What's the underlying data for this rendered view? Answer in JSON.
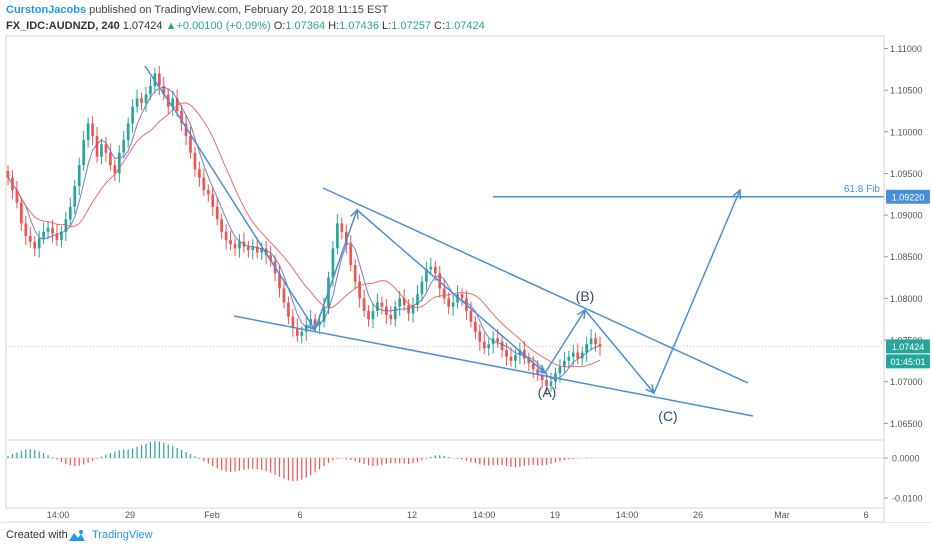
{
  "header": {
    "author": "CurstonJacobs",
    "published_text": " published on TradingView.com, February 20, 2018 11:15 EST",
    "symbol": "FX_IDC:AUDNZD, 240",
    "last": "1.07424",
    "change_arrow": "▲",
    "change": "+0.00100 (+0.09%)",
    "o_label": "O:",
    "o_val": "1.07364",
    "h_label": "H:",
    "h_val": "1.07436",
    "l_label": "L:",
    "l_val": "1.07257",
    "c_label": "C:",
    "c_val": "1.07424"
  },
  "footer": {
    "created_with": "Created with",
    "brand": "TradingView"
  },
  "colors": {
    "up_candle": "#26a69a",
    "down_candle": "#ef5350",
    "drawing": "#4a8fd6",
    "fast_ma": "#5c6bc0",
    "slow_ma": "#ef5350",
    "price_badge": "#26a69a",
    "fib_badge": "#4a8fd6"
  },
  "chart_data": {
    "type": "candlestick",
    "symbol": "FX_IDC:AUDNZD",
    "timeframe": "240",
    "ylim": [
      1.063,
      1.1115
    ],
    "y_ticks": [
      "1.11000",
      "1.10500",
      "1.10000",
      "1.09500",
      "1.09000",
      "1.08500",
      "1.08000",
      "1.07500",
      "1.07000",
      "1.06500"
    ],
    "x_ticks": [
      "14:00",
      "29",
      "Feb",
      "6",
      "12",
      "14:00",
      "19",
      "14:00",
      "26",
      "Mar",
      "6"
    ],
    "price_closes": [
      1.0945,
      1.093,
      1.0915,
      1.089,
      1.0875,
      1.0868,
      1.086,
      1.0872,
      1.088,
      1.0885,
      1.0878,
      1.087,
      1.088,
      1.0895,
      1.091,
      1.0935,
      1.096,
      1.099,
      1.101,
      1.0995,
      1.097,
      1.0985,
      1.0975,
      1.096,
      1.095,
      1.0975,
      1.099,
      1.101,
      1.103,
      1.104,
      1.1035,
      1.1045,
      1.1055,
      1.107,
      1.1055,
      1.1045,
      1.103,
      1.104,
      1.1025,
      1.101,
      1.0995,
      1.0975,
      1.0955,
      1.0945,
      1.093,
      1.0925,
      1.091,
      1.0895,
      1.088,
      1.087,
      1.0865,
      1.086,
      1.0868,
      1.0862,
      1.0858,
      1.0862,
      1.0855,
      1.086,
      1.0852,
      1.0845,
      1.083,
      1.0812,
      1.0795,
      1.0778,
      1.0765,
      1.0755,
      1.076,
      1.0768,
      1.0775,
      1.0768,
      1.0772,
      1.079,
      1.0825,
      1.086,
      1.089,
      1.088,
      1.0865,
      1.084,
      1.082,
      1.08,
      1.0785,
      1.0775,
      1.0785,
      1.0795,
      1.079,
      1.078,
      1.0775,
      1.079,
      1.08,
      1.0792,
      1.0782,
      1.0792,
      1.0805,
      1.082,
      1.0835,
      1.0838,
      1.083,
      1.0812,
      1.08,
      1.079,
      1.0795,
      1.0805,
      1.08,
      1.0785,
      1.0772,
      1.076,
      1.0748,
      1.074,
      1.0745,
      1.0752,
      1.0748,
      1.0738,
      1.073,
      1.0725,
      1.0732,
      1.0738,
      1.0728,
      1.0722,
      1.0715,
      1.0708,
      1.0702,
      1.0695,
      1.07,
      1.071,
      1.0718,
      1.0725,
      1.073,
      1.0735,
      1.0728,
      1.0735,
      1.0745,
      1.0752,
      1.0745,
      1.0742
    ],
    "fib_label": "61.8 Fib",
    "fib_level": 1.0922,
    "fib_level_label": "1.09220",
    "last_price": 1.07424,
    "last_price_label": "1.07424",
    "countdown": "01:45:01",
    "wave_labels": [
      "(A)",
      "(B)",
      "(C)"
    ],
    "oscillator": {
      "ylim": [
        -0.0125,
        0.0045
      ],
      "y_ticks": [
        "0.0000",
        "-0.0100"
      ],
      "values": [
        0.0005,
        0.001,
        0.0014,
        0.0018,
        0.0021,
        0.0022,
        0.002,
        0.0016,
        0.0012,
        0.0007,
        0.0002,
        -0.0004,
        -0.001,
        -0.0015,
        -0.0018,
        -0.002,
        -0.0019,
        -0.0016,
        -0.0012,
        -0.0007,
        -0.0002,
        0.0003,
        0.0008,
        0.0012,
        0.0016,
        0.0019,
        0.0021,
        0.0022,
        0.0024,
        0.0028,
        0.0032,
        0.0036,
        0.004,
        0.0042,
        0.0041,
        0.0038,
        0.0034,
        0.003,
        0.0025,
        0.002,
        0.0015,
        0.001,
        0.0004,
        -0.0002,
        -0.0008,
        -0.0014,
        -0.002,
        -0.0026,
        -0.003,
        -0.0034,
        -0.0035,
        -0.0034,
        -0.0032,
        -0.003,
        -0.0028,
        -0.0027,
        -0.0028,
        -0.003,
        -0.0033,
        -0.0037,
        -0.0042,
        -0.0047,
        -0.0052,
        -0.0056,
        -0.0058,
        -0.0057,
        -0.0054,
        -0.0049,
        -0.0043,
        -0.0036,
        -0.0028,
        -0.002,
        -0.0012,
        -0.0006,
        -0.0002,
        -0.0001,
        -0.0003,
        -0.0005,
        -0.0008,
        -0.0012,
        -0.0015,
        -0.0018,
        -0.002,
        -0.0019,
        -0.0017,
        -0.0015,
        -0.0013,
        -0.0012,
        -0.0013,
        -0.0014,
        -0.0015,
        -0.0013,
        -0.001,
        -0.0006,
        -0.0002,
        0.0003,
        0.0006,
        0.0007,
        0.0005,
        0.0002,
        0.0,
        -0.0002,
        -0.0004,
        -0.0007,
        -0.001,
        -0.0013,
        -0.0016,
        -0.0018,
        -0.0019,
        -0.0018,
        -0.0017,
        -0.0018,
        -0.002,
        -0.0022,
        -0.0023,
        -0.0022,
        -0.002,
        -0.0018,
        -0.0017,
        -0.0018,
        -0.0019,
        -0.0017,
        -0.0014,
        -0.0011,
        -0.0008,
        -0.0005,
        -0.0003,
        -0.0002,
        -0.0001,
        0.0,
        0.0001,
        0.0001,
        0.0,
        0.0001
      ]
    }
  }
}
